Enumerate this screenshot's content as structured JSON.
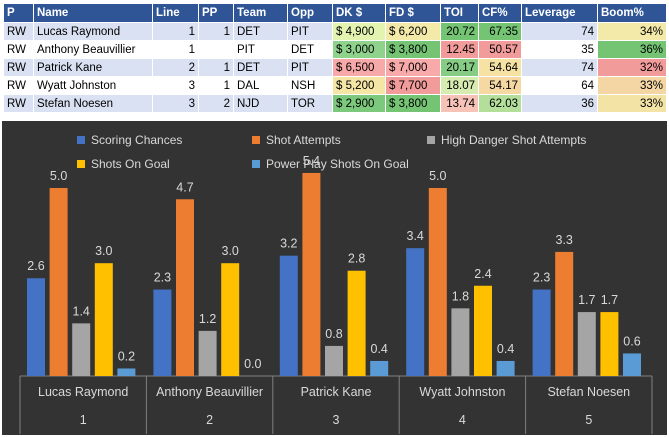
{
  "table": {
    "headers": [
      "P",
      "Name",
      "Line",
      "PP",
      "Team",
      "Opp",
      "DK $",
      "FD $",
      "TOI",
      "CF%",
      "Leverage",
      "Boom%"
    ],
    "rows": [
      {
        "pos": "RW",
        "name": "Lucas Raymond",
        "line": "1",
        "pp": "1",
        "team": "DET",
        "opp": "PIT",
        "dk": "$ 4,900",
        "fd": "$ 6,200",
        "toi": "20.72",
        "cf": "67.35",
        "leverage": "74",
        "boom": "34%"
      },
      {
        "pos": "RW",
        "name": "Anthony Beauvillier",
        "line": "1",
        "pp": "",
        "team": "PIT",
        "opp": "DET",
        "dk": "$ 3,000",
        "fd": "$ 3,800",
        "toi": "12.45",
        "cf": "50.57",
        "leverage": "35",
        "boom": "36%"
      },
      {
        "pos": "RW",
        "name": "Patrick Kane",
        "line": "2",
        "pp": "1",
        "team": "DET",
        "opp": "PIT",
        "dk": "$ 6,500",
        "fd": "$ 7,000",
        "toi": "20.17",
        "cf": "54.64",
        "leverage": "74",
        "boom": "32%"
      },
      {
        "pos": "RW",
        "name": "Wyatt Johnston",
        "line": "3",
        "pp": "1",
        "team": "DAL",
        "opp": "NSH",
        "dk": "$ 5,200",
        "fd": "$ 7,700",
        "toi": "18.07",
        "cf": "54.17",
        "leverage": "64",
        "boom": "33%"
      },
      {
        "pos": "RW",
        "name": "Stefan Noesen",
        "line": "3",
        "pp": "2",
        "team": "NJD",
        "opp": "TOR",
        "dk": "$ 2,900",
        "fd": "$ 3,800",
        "toi": "13.74",
        "cf": "62.03",
        "leverage": "36",
        "boom": "33%"
      }
    ],
    "cell_colors": {
      "dk": [
        "#e3f3b0",
        "#8fd28c",
        "#f7a8a8",
        "#f5e6a6",
        "#7cc87c"
      ],
      "fd": [
        "#f3e9a8",
        "#74c474",
        "#f8a9a9",
        "#f29b9b",
        "#74c474"
      ],
      "toi": [
        "#74c474",
        "#f29b9b",
        "#86cc84",
        "#d6ecb0",
        "#f7c2b8"
      ],
      "cf": [
        "#74c474",
        "#f29b9b",
        "#f6e2a3",
        "#f6d8a3",
        "#b3df9b"
      ],
      "leverage": [
        "#74c474",
        "#f29b9b",
        "#74c474",
        "#a7d98f",
        "#f4a3a3"
      ],
      "boom": [
        "#f3e9a8",
        "#74c474",
        "#f29b9b",
        "#f3d6a3",
        "#f3e3a5"
      ]
    }
  },
  "colors": {
    "scoring": "#4472c4",
    "shots": "#ed7d31",
    "hd": "#a5a5a5",
    "sog": "#ffc000",
    "pp": "#5b9bd5"
  },
  "chart_data": {
    "type": "bar",
    "categories": [
      "Lucas Raymond",
      "Anthony Beauvillier",
      "Patrick Kane",
      "Wyatt Johnston",
      "Stefan Noesen"
    ],
    "category_numbers": [
      "1",
      "2",
      "3",
      "4",
      "5"
    ],
    "series": [
      {
        "name": "Scoring Chances",
        "values": [
          2.6,
          2.3,
          3.2,
          3.4,
          2.3
        ]
      },
      {
        "name": "Shot Attempts",
        "values": [
          5.0,
          4.7,
          5.4,
          5.0,
          3.3
        ]
      },
      {
        "name": "High Danger Shot Attempts",
        "values": [
          1.4,
          1.2,
          0.8,
          1.8,
          1.7
        ]
      },
      {
        "name": "Shots On Goal",
        "values": [
          3.0,
          3.0,
          2.8,
          2.4,
          1.7
        ]
      },
      {
        "name": "Power Play Shots On Goal",
        "values": [
          0.2,
          0.0,
          0.4,
          0.4,
          0.6
        ]
      }
    ],
    "value_labels": [
      [
        "2.6",
        "2.3",
        "3.2",
        "3.4",
        "2.3"
      ],
      [
        "5.0",
        "4.7",
        "5.4",
        "5.0",
        "3.3"
      ],
      [
        "1.4",
        "1.2",
        "0.8",
        "1.8",
        "1.7"
      ],
      [
        "3.0",
        "3.0",
        "2.8",
        "2.4",
        "1.7"
      ],
      [
        "0.2",
        "0.0",
        "0.4",
        "0.4",
        "0.6"
      ]
    ],
    "ylim": [
      0,
      6
    ],
    "grid": false,
    "legend": "top"
  }
}
